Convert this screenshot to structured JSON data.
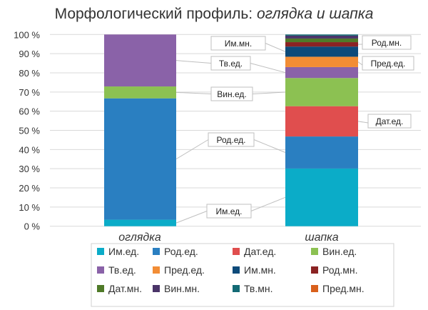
{
  "chart_data": {
    "type": "bar",
    "stacked": "percent",
    "title": "Морфологический профиль: ",
    "title_italic": "оглядка и шапка",
    "categories": [
      "оглядка",
      "шапка"
    ],
    "ylim": [
      0,
      100
    ],
    "yticks": [
      "0 %",
      "10 %",
      "20 %",
      "30 %",
      "40 %",
      "50 %",
      "60 %",
      "70 %",
      "80 %",
      "90 %",
      "100 %"
    ],
    "grid": true,
    "legend_position": "bottom",
    "series": [
      {
        "name": "Им.ед.",
        "color": "#0bacc8",
        "values": [
          3.4,
          30.1
        ]
      },
      {
        "name": "Род.ед.",
        "color": "#2a7fc1",
        "values": [
          63.3,
          16.7
        ]
      },
      {
        "name": "Дат.ед.",
        "color": "#e04e4e",
        "values": [
          0,
          15.8
        ]
      },
      {
        "name": "Вин.ед.",
        "color": "#8cc152",
        "values": [
          6.2,
          14.7
        ]
      },
      {
        "name": "Тв.ед.",
        "color": "#8a62a8",
        "values": [
          27.1,
          5.7
        ]
      },
      {
        "name": "Пред.ед.",
        "color": "#f28d35",
        "values": [
          0,
          5.4
        ]
      },
      {
        "name": "Им.мн.",
        "color": "#0d4a7a",
        "values": [
          0,
          5.3
        ]
      },
      {
        "name": "Род.мн.",
        "color": "#8b2323",
        "values": [
          0,
          2.3
        ]
      },
      {
        "name": "Дат.мн.",
        "color": "#4f7a28",
        "values": [
          0,
          1.9
        ]
      },
      {
        "name": "Вин.мн.",
        "color": "#4a3468",
        "values": [
          0,
          1.5
        ]
      },
      {
        "name": "Тв.мн.",
        "color": "#136a75",
        "values": [
          0,
          0.6
        ]
      },
      {
        "name": "Пред.мн.",
        "color": "#d9601c",
        "values": [
          0,
          0
        ]
      }
    ],
    "annotations": [
      "Им.мн.",
      "Тв.ед.",
      "Вин.ед.",
      "Род.ед.",
      "Им.ед.",
      "Род.мн.",
      "Пред.ед.",
      "Дат.ед."
    ]
  }
}
